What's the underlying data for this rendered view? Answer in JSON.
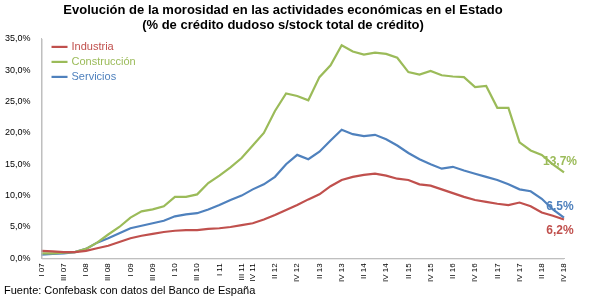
{
  "chart_data": {
    "type": "line",
    "title": "Evolución de la morosidad en las actividades económicas en el Estado",
    "subtitle": "(% de crédito dudoso s/stock total de crédito)",
    "source": "Fuente: Confebask con datos del Banco de España",
    "categories": [
      "I 07",
      null,
      "III 07",
      null,
      "I 08",
      null,
      "III 08",
      null,
      "I 09",
      null,
      "III 09",
      null,
      "I 10",
      null,
      "III 10",
      null,
      "I 11",
      null,
      "III 11",
      "IV 11",
      null,
      "II 12",
      null,
      "IV 12",
      null,
      "II 13",
      null,
      "IV 13",
      null,
      "II 14",
      null,
      "IV 14",
      null,
      "II 15",
      null,
      "IV 15",
      null,
      "II 16",
      null,
      "IV 16",
      null,
      "II 17",
      null,
      "IV 17",
      null,
      "II 18",
      null,
      "IV 18"
    ],
    "series": [
      {
        "name": "Industria",
        "color": "#c0504d",
        "values": [
          1.2,
          1.1,
          1.0,
          1.0,
          1.2,
          1.6,
          2.0,
          2.6,
          3.2,
          3.6,
          3.9,
          4.2,
          4.4,
          4.5,
          4.5,
          4.7,
          4.8,
          5.0,
          5.3,
          5.6,
          6.2,
          6.9,
          7.7,
          8.5,
          9.4,
          10.2,
          11.5,
          12.5,
          13.0,
          13.3,
          13.5,
          13.2,
          12.7,
          12.5,
          11.8,
          11.6,
          11.0,
          10.4,
          9.8,
          9.3,
          9.0,
          8.7,
          8.5,
          8.9,
          8.3,
          7.3,
          6.8,
          6.2
        ],
        "value_labels": [
          null,
          null,
          null,
          null,
          null,
          null,
          null,
          null,
          null,
          null,
          null,
          null,
          null,
          null,
          null,
          null,
          null,
          null,
          null,
          null,
          null,
          null,
          null,
          null,
          null,
          null,
          null,
          null,
          null,
          null,
          null,
          null,
          null,
          null,
          null,
          null,
          null,
          null,
          null,
          null,
          null,
          null,
          null,
          null,
          null,
          null,
          null,
          "6,2%"
        ]
      },
      {
        "name": "Construcción",
        "color": "#9bbb59",
        "values": [
          0.8,
          0.8,
          0.9,
          1.0,
          1.5,
          2.5,
          3.8,
          5.0,
          6.5,
          7.5,
          7.8,
          8.3,
          9.8,
          9.8,
          10.2,
          12.0,
          13.2,
          14.5,
          16.0,
          18.0,
          20.0,
          23.5,
          26.3,
          25.9,
          25.2,
          28.9,
          30.8,
          34.0,
          33.0,
          32.5,
          32.8,
          32.6,
          32.0,
          29.7,
          29.3,
          29.9,
          29.2,
          29.0,
          28.9,
          27.3,
          27.5,
          24.0,
          24.0,
          18.5,
          17.2,
          16.5,
          15.0,
          13.7
        ],
        "value_labels": [
          null,
          null,
          null,
          null,
          null,
          null,
          null,
          null,
          null,
          null,
          null,
          null,
          null,
          null,
          null,
          null,
          null,
          null,
          null,
          null,
          null,
          null,
          null,
          null,
          null,
          null,
          null,
          null,
          null,
          null,
          null,
          null,
          null,
          null,
          null,
          null,
          null,
          null,
          null,
          null,
          null,
          null,
          null,
          null,
          null,
          null,
          null,
          "13,7%"
        ]
      },
      {
        "name": "Servicios",
        "color": "#4f81bd",
        "values": [
          0.6,
          0.7,
          0.8,
          1.0,
          1.5,
          2.5,
          3.2,
          4.0,
          4.8,
          5.2,
          5.6,
          6.0,
          6.7,
          7.0,
          7.2,
          7.8,
          8.5,
          9.3,
          10.0,
          11.0,
          11.8,
          13.0,
          15.0,
          16.5,
          15.8,
          17.0,
          18.8,
          20.5,
          19.8,
          19.5,
          19.7,
          19.0,
          18.0,
          16.8,
          15.8,
          15.0,
          14.3,
          14.6,
          14.0,
          13.5,
          13.0,
          12.5,
          11.8,
          11.0,
          10.7,
          9.5,
          7.8,
          6.5
        ],
        "value_labels": [
          null,
          null,
          null,
          null,
          null,
          null,
          null,
          null,
          null,
          null,
          null,
          null,
          null,
          null,
          null,
          null,
          null,
          null,
          null,
          null,
          null,
          null,
          null,
          null,
          null,
          null,
          null,
          null,
          null,
          null,
          null,
          null,
          null,
          null,
          null,
          null,
          null,
          null,
          null,
          null,
          null,
          null,
          null,
          null,
          null,
          null,
          null,
          "6,5%"
        ]
      }
    ],
    "ylim": [
      0,
      35
    ],
    "yticks": [
      {
        "value": 0,
        "label": "0,0%"
      },
      {
        "value": 5,
        "label": "5,0%"
      },
      {
        "value": 10,
        "label": "10,0%"
      },
      {
        "value": 15,
        "label": "15,0%"
      },
      {
        "value": 20,
        "label": "20,0%"
      },
      {
        "value": 25,
        "label": "25,0%"
      },
      {
        "value": 30,
        "label": "30,0%"
      },
      {
        "value": 35,
        "label": "35,0%"
      }
    ],
    "grid": false,
    "legend": "upper left",
    "data_labels": true
  }
}
